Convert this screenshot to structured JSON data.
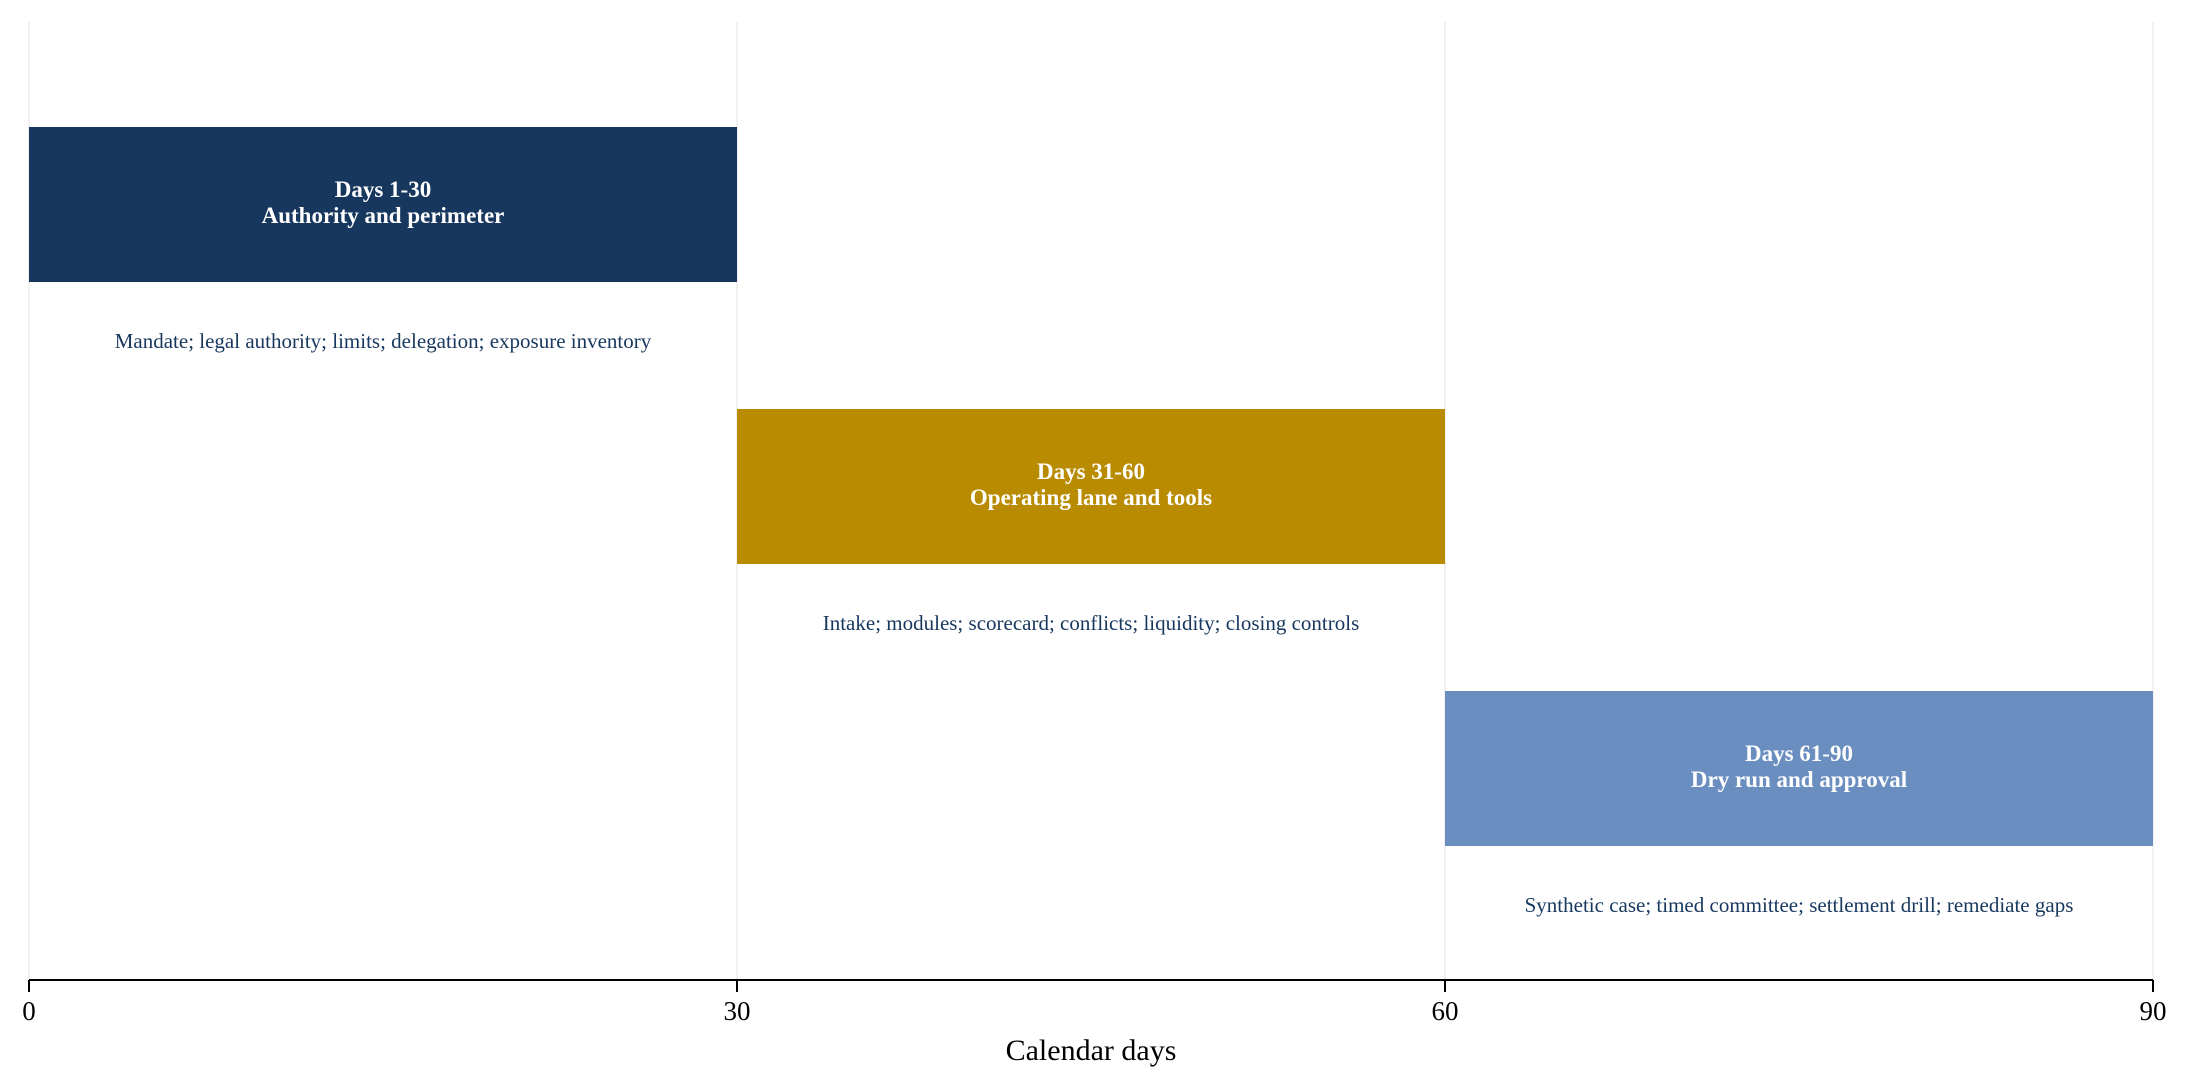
{
  "chart_data": {
    "type": "gantt",
    "xlabel": "Calendar days",
    "xlim": [
      0,
      90
    ],
    "xticks": [
      0,
      30,
      60,
      90
    ],
    "grid": true,
    "phases": [
      {
        "start": 0,
        "end": 30,
        "label_line1": "Days 1-30",
        "label_line2": "Authority and perimeter",
        "note": "Mandate; legal authority; limits; delegation; exposure inventory",
        "color": "#17375e"
      },
      {
        "start": 30,
        "end": 60,
        "label_line1": "Days 31-60",
        "label_line2": "Operating lane and tools",
        "note": "Intake; modules; scorecard; conflicts; liquidity; closing controls",
        "color": "#b88b00"
      },
      {
        "start": 60,
        "end": 90,
        "label_line1": "Days 61-90",
        "label_line2": "Dry run and approval",
        "note": "Synthetic case; timed committee; settlement drill; remediate gaps",
        "color": "#6b8ec0"
      }
    ],
    "colors": {
      "note_text": "#17375e",
      "axis": "#000000",
      "gridline": "#ebebeb"
    }
  }
}
